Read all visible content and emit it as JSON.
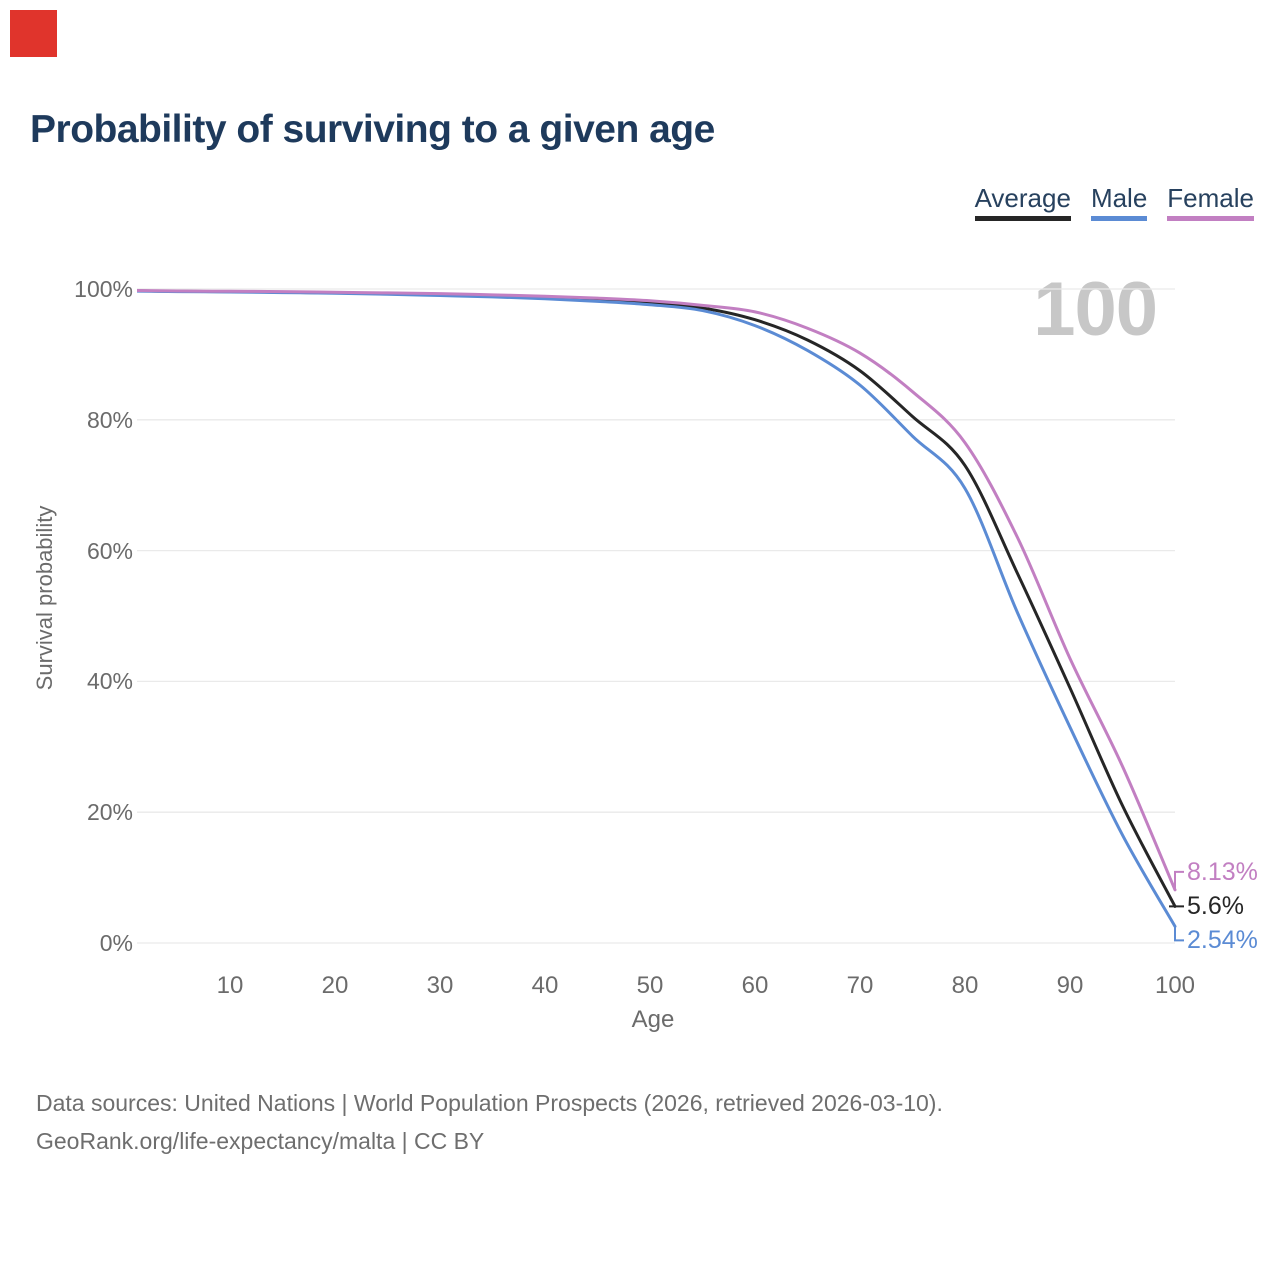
{
  "title": "Probability of surviving to a given age",
  "watermark": "100",
  "colors": {
    "marker": "#e0342c",
    "title": "#1e3a5c",
    "legend_text": "#27415e",
    "average": "#262626",
    "male": "#5b8bd4",
    "female": "#c27fc2",
    "gridline": "#eaeaea",
    "axis_text": "#6b6b6b",
    "watermark": "#c7c7c7",
    "footer_text": "#6e6e6e"
  },
  "legend": [
    {
      "label": "Average",
      "color": "#262626"
    },
    {
      "label": "Male",
      "color": "#5b8bd4"
    },
    {
      "label": "Female",
      "color": "#c27fc2"
    }
  ],
  "y_axis": {
    "label": "Survival probability",
    "ticks": [
      "100%",
      "80%",
      "60%",
      "40%",
      "20%",
      "0%"
    ],
    "values": [
      100,
      80,
      60,
      40,
      20,
      0
    ]
  },
  "x_axis": {
    "label": "Age",
    "ticks": [
      "10",
      "20",
      "30",
      "40",
      "50",
      "60",
      "70",
      "80",
      "90",
      "100"
    ],
    "values": [
      10,
      20,
      30,
      40,
      50,
      60,
      70,
      80,
      90,
      100
    ]
  },
  "end_labels": [
    {
      "series": "Female",
      "text": "8.13%"
    },
    {
      "series": "Average",
      "text": "5.6%"
    },
    {
      "series": "Male",
      "text": "2.54%"
    }
  ],
  "footer": {
    "line1": "Data sources: United Nations | World Population Prospects (2026, retrieved 2026-03-10).",
    "line2": "GeoRank.org/life-expectancy/malta | CC BY"
  },
  "chart_data": {
    "type": "line",
    "title": "Probability of surviving to a given age",
    "xlabel": "Age",
    "ylabel": "Survival probability",
    "xlim": [
      0,
      100
    ],
    "ylim": [
      0,
      100
    ],
    "grid": "horizontal",
    "legend_position": "top-right",
    "x": [
      0,
      5,
      10,
      15,
      20,
      25,
      30,
      35,
      40,
      45,
      50,
      55,
      60,
      65,
      70,
      75,
      80,
      85,
      90,
      95,
      100
    ],
    "series": [
      {
        "name": "Average",
        "color": "#262626",
        "end_label": "5.6%",
        "values": [
          99.75,
          99.65,
          99.6,
          99.5,
          99.4,
          99.3,
          99.15,
          98.95,
          98.7,
          98.35,
          97.9,
          97.1,
          95.3,
          92.2,
          87.5,
          80.5,
          73.0,
          56.5,
          39.0,
          21.0,
          5.6
        ]
      },
      {
        "name": "Male",
        "color": "#5b8bd4",
        "end_label": "2.54%",
        "values": [
          99.7,
          99.6,
          99.55,
          99.45,
          99.35,
          99.2,
          99.0,
          98.8,
          98.5,
          98.1,
          97.6,
          96.7,
          94.4,
          90.6,
          85.3,
          77.5,
          69.5,
          50.5,
          33.0,
          16.5,
          2.54
        ]
      },
      {
        "name": "Female",
        "color": "#c27fc2",
        "end_label": "8.13%",
        "values": [
          99.8,
          99.7,
          99.65,
          99.6,
          99.5,
          99.4,
          99.3,
          99.1,
          98.9,
          98.6,
          98.2,
          97.5,
          96.5,
          94.0,
          90.2,
          84.3,
          76.5,
          62.0,
          43.5,
          27.0,
          8.13
        ]
      }
    ]
  }
}
